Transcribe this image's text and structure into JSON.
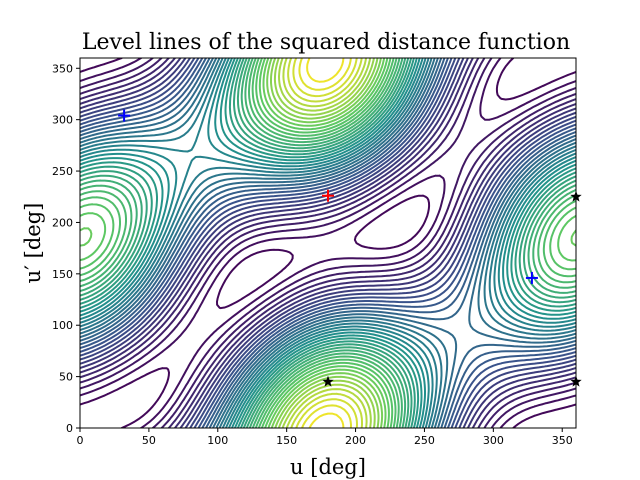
{
  "chart_data": {
    "type": "contour",
    "title": "Level lines of the squared distance function",
    "xlabel": "u [deg]",
    "ylabel": "u′ [deg]",
    "xlim": [
      0,
      360
    ],
    "ylim": [
      0,
      360
    ],
    "x_ticks": [
      "0",
      "50",
      "100",
      "150",
      "200",
      "250",
      "300",
      "350"
    ],
    "y_ticks": [
      "0",
      "50",
      "100",
      "150",
      "200",
      "250",
      "300",
      "350"
    ],
    "grid": false,
    "colormap": [
      "#440154",
      "#3b528b",
      "#21918c",
      "#5ec962",
      "#fde725"
    ],
    "maximum": {
      "u": 180,
      "u_prime": 226,
      "marker": "+",
      "color": "#ff0000"
    },
    "minima": [
      {
        "u": 32,
        "u_prime": 304,
        "marker": "+",
        "color": "#0000ff"
      },
      {
        "u": 328,
        "u_prime": 146,
        "marker": "+",
        "color": "#0000ff"
      }
    ],
    "saddles": [
      {
        "u": 180,
        "u_prime": 45,
        "marker": "star",
        "color": "#000000"
      },
      {
        "u": 360,
        "u_prime": 45,
        "marker": "star",
        "color": "#000000"
      },
      {
        "u": 360,
        "u_prime": 225,
        "marker": "star",
        "color": "#000000"
      }
    ]
  }
}
